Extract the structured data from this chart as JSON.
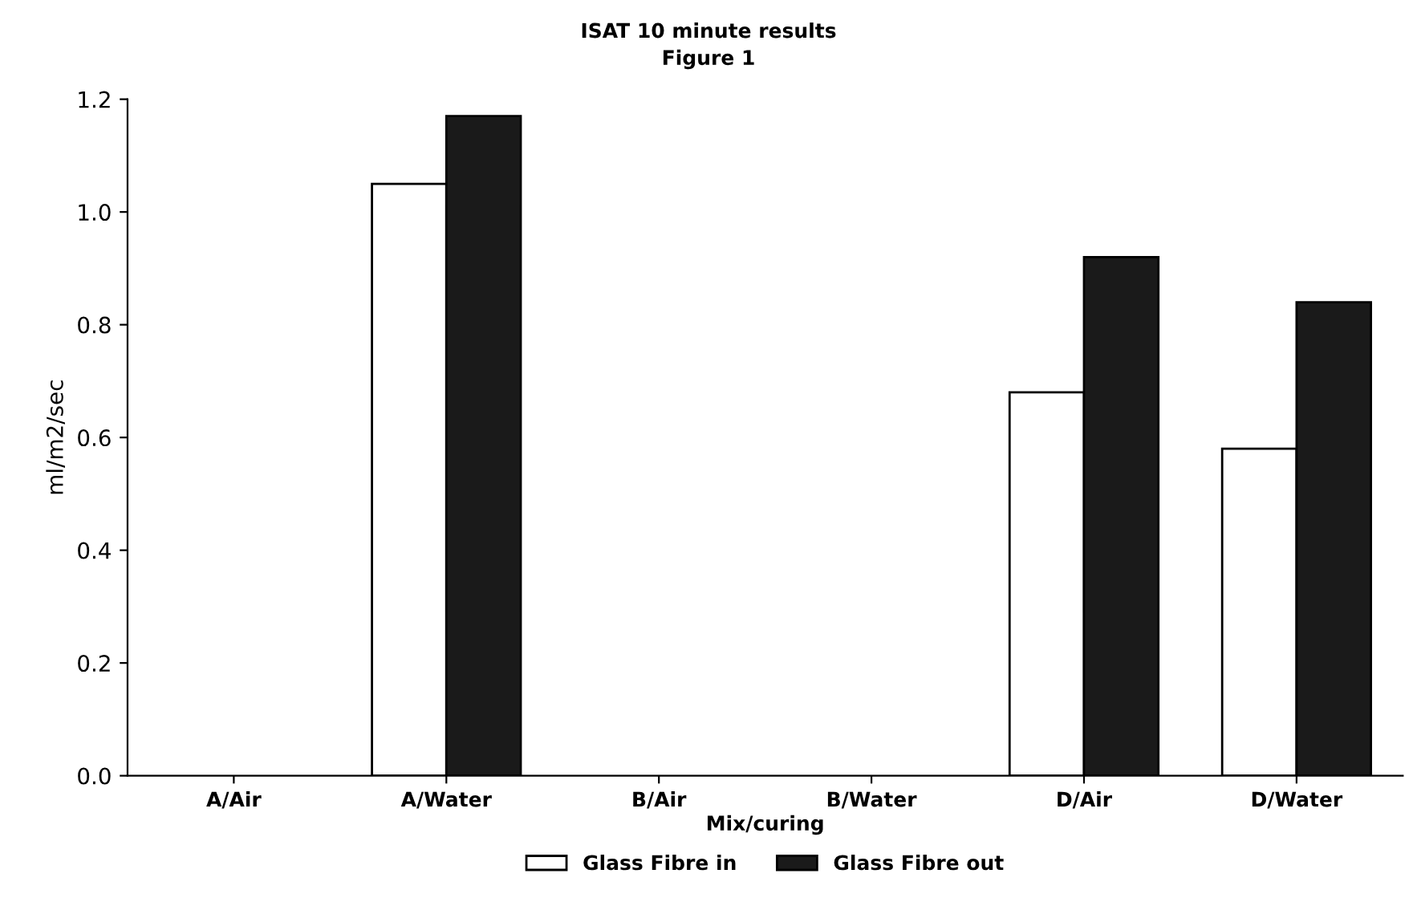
{
  "chart_data": {
    "type": "bar",
    "title": "ISAT 10 minute results",
    "subtitle": "Figure 1",
    "xlabel": "Mix/curing",
    "ylabel": "ml/m2/sec",
    "categories": [
      "A/Air",
      "A/Water",
      "B/Air",
      "B/Water",
      "D/Air",
      "D/Water"
    ],
    "series": [
      {
        "name": "Glass Fibre in",
        "color": "#ffffff",
        "values": [
          null,
          1.05,
          null,
          null,
          0.68,
          0.58
        ]
      },
      {
        "name": "Glass Fibre out",
        "color": "#1a1a1a",
        "values": [
          null,
          1.17,
          null,
          null,
          0.92,
          0.84
        ]
      }
    ],
    "ylim": [
      0,
      1.2
    ],
    "yticks": [
      {
        "value": 0,
        "label": "0.0"
      },
      {
        "value": 0.2,
        "label": "0.2"
      },
      {
        "value": 0.4,
        "label": "0.4"
      },
      {
        "value": 0.6,
        "label": "0.6"
      },
      {
        "value": 0.8,
        "label": "0.8"
      },
      {
        "value": 1.0,
        "label": "1.0"
      },
      {
        "value": 1.2,
        "label": "1.2"
      }
    ],
    "grid": false,
    "legend": "bottom"
  }
}
